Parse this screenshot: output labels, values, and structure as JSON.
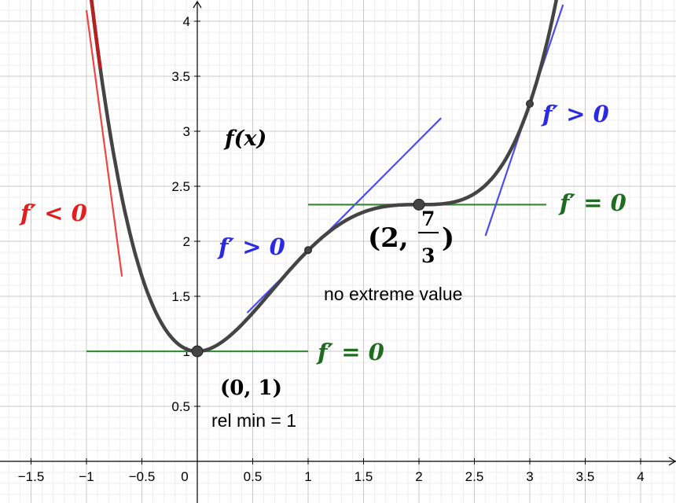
{
  "chart_data": {
    "type": "line",
    "title": "",
    "xlabel": "",
    "ylabel": "",
    "xlim": [
      -1.75,
      4.3
    ],
    "ylim": [
      -0.35,
      4.15
    ],
    "grid": true,
    "x_tick_labels": [
      "−1.5",
      "−1",
      "−0.5",
      "0",
      "0.5",
      "1",
      "1.5",
      "2",
      "2.5",
      "3",
      "3.5",
      "4"
    ],
    "x_tick_values": [
      -1.5,
      -1,
      -0.5,
      0,
      0.5,
      1,
      1.5,
      2,
      2.5,
      3,
      3.5,
      4
    ],
    "y_tick_labels": [
      "0.5",
      "1",
      "1.5",
      "2",
      "2.5",
      "3",
      "3.5",
      "4"
    ],
    "y_tick_values": [
      0.5,
      1,
      1.5,
      2,
      2.5,
      3,
      3.5,
      4
    ],
    "series": [
      {
        "function": "f(x) = x^4/4 - 4x^3/3 + 2x^2 + 1",
        "color": "#444444",
        "x": [
          -1.0,
          -0.75,
          -0.5,
          -0.25,
          0,
          0.25,
          0.5,
          0.75,
          1.0,
          1.25,
          1.5,
          1.75,
          2.0,
          2.25,
          2.5,
          2.75,
          3.0,
          3.2
        ],
        "y": [
          4.58,
          3.77,
          2.7,
          1.85,
          1.0,
          1.1,
          1.35,
          1.63,
          1.92,
          2.14,
          2.27,
          2.32,
          2.33,
          2.34,
          2.39,
          2.56,
          3.25,
          3.92
        ]
      }
    ],
    "tangents": [
      {
        "sign": "negative",
        "color": "#ee4444",
        "x": [
          -1.0,
          -0.68
        ],
        "y": [
          4.1,
          1.68
        ]
      },
      {
        "sign": "zero",
        "color": "#3d8c3d",
        "x": [
          -1.0,
          1.0
        ],
        "y": [
          1.0,
          1.0
        ]
      },
      {
        "sign": "positive",
        "color": "#4b4bee",
        "x": [
          0.45,
          2.2
        ],
        "y": [
          1.35,
          3.12
        ]
      },
      {
        "sign": "zero",
        "color": "#3d8c3d",
        "x": [
          1.0,
          3.15
        ],
        "y": [
          2.333,
          2.333
        ]
      },
      {
        "sign": "positive",
        "color": "#4b4bee",
        "x": [
          2.6,
          3.3
        ],
        "y": [
          2.05,
          4.15
        ]
      }
    ],
    "points": [
      {
        "x": 0,
        "y": 1,
        "size": "large"
      },
      {
        "x": 1,
        "y": 1.92,
        "size": "small"
      },
      {
        "x": 2,
        "y": 2.333,
        "size": "large"
      },
      {
        "x": 3,
        "y": 3.25,
        "size": "small"
      }
    ],
    "annotations": {
      "func_label": "f(x)",
      "neg_label": "f′ < 0",
      "zero_label_1": "f′ = 0",
      "pos_label_1": "f′ > 0",
      "zero_label_2": "f′ = 0",
      "pos_label_2": "f′ > 0",
      "min_point": "(0, 1)",
      "min_desc": "rel min = 1",
      "inflect_open": "(2, ",
      "inflect_num": "7",
      "inflect_den": "3",
      "inflect_close": ")",
      "inflect_desc": "no extreme value"
    },
    "colors": {
      "curve": "#444444",
      "curve_tip": "#b22222",
      "negative": "#ee4444",
      "zero": "#3d8c3d",
      "positive": "#4b4bee",
      "neg_text": "#e02020",
      "zero_text": "#1f6b1f",
      "pos_text": "#2a2ae0"
    }
  }
}
